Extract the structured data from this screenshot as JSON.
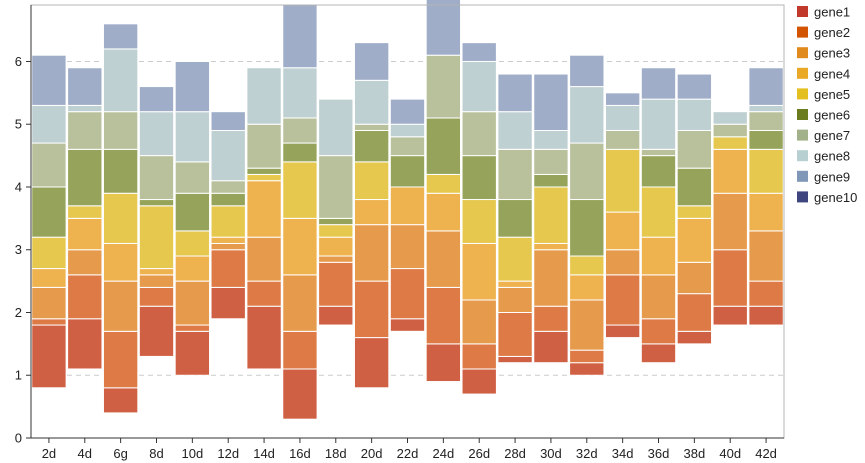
{
  "chart_data": {
    "type": "bar",
    "stacked": true,
    "floating_base": true,
    "title": "",
    "xlabel": "",
    "ylabel": "",
    "ylim": [
      0,
      6.9
    ],
    "yticks": [
      0,
      1,
      2,
      3,
      4,
      5,
      6
    ],
    "grid": "horizontal dashed at 1-6",
    "legend": "right",
    "categories": [
      "2d",
      "4d",
      "6g",
      "8d",
      "10d",
      "12d",
      "14d",
      "16d",
      "18d",
      "20d",
      "22d",
      "24d",
      "26d",
      "28d",
      "30d",
      "32d",
      "34d",
      "36d",
      "38d",
      "40d",
      "42d"
    ],
    "base": [
      0.8,
      1.1,
      0.4,
      1.3,
      1.0,
      1.9,
      1.1,
      0.3,
      1.8,
      0.8,
      1.7,
      0.9,
      0.7,
      1.2,
      1.2,
      1.0,
      1.6,
      1.2,
      1.5,
      1.8,
      1.8
    ],
    "series": [
      {
        "name": "gene1",
        "color": "#d06043",
        "values": [
          1.0,
          0.8,
          0.4,
          0.8,
          0.7,
          0.5,
          1.0,
          0.8,
          0.3,
          0.8,
          0.2,
          0.6,
          0.4,
          0.1,
          0.5,
          0.2,
          0.2,
          0.3,
          0.2,
          0.3,
          0.3
        ]
      },
      {
        "name": "gene2",
        "color": "#dd7a45",
        "values": [
          0.1,
          0.7,
          0.9,
          0.3,
          0.1,
          0.6,
          0.4,
          0.6,
          0.7,
          0.9,
          0.8,
          0.9,
          0.4,
          0.7,
          0.4,
          0.2,
          0.8,
          0.4,
          0.6,
          0.9,
          0.4
        ]
      },
      {
        "name": "gene3",
        "color": "#e69a4b",
        "values": [
          0.5,
          0.4,
          0.8,
          0.2,
          0.7,
          0.1,
          0.7,
          0.9,
          0.1,
          0.9,
          0.7,
          0.9,
          0.7,
          0.4,
          0.9,
          0.8,
          0.4,
          0.7,
          0.5,
          0.9,
          0.8
        ]
      },
      {
        "name": "gene4",
        "color": "#eeb24e",
        "values": [
          0.3,
          0.5,
          0.6,
          0.1,
          0.4,
          0.1,
          0.9,
          0.9,
          0.3,
          0.4,
          0.6,
          0.6,
          0.9,
          0.1,
          0.1,
          0.4,
          0.6,
          0.6,
          0.7,
          0.7,
          0.6
        ]
      },
      {
        "name": "gene5",
        "color": "#e6c84e",
        "values": [
          0.5,
          0.2,
          0.8,
          1.0,
          0.4,
          0.5,
          0.1,
          0.9,
          0.2,
          0.6,
          0.0,
          0.3,
          0.7,
          0.7,
          0.9,
          0.3,
          1.0,
          0.8,
          0.2,
          0.2,
          0.7
        ]
      },
      {
        "name": "gene6",
        "color": "#95a45a",
        "values": [
          0.8,
          0.9,
          0.7,
          0.1,
          0.6,
          0.2,
          0.1,
          0.3,
          0.1,
          0.5,
          0.5,
          0.9,
          0.7,
          0.6,
          0.2,
          0.9,
          0.0,
          0.5,
          0.6,
          0.0,
          0.3
        ]
      },
      {
        "name": "gene7",
        "color": "#b8c19c",
        "values": [
          0.7,
          0.6,
          0.6,
          0.7,
          0.5,
          0.2,
          0.7,
          0.4,
          1.0,
          0.1,
          0.3,
          1.0,
          0.7,
          0.8,
          0.4,
          0.9,
          0.3,
          0.1,
          0.6,
          0.2,
          0.3
        ]
      },
      {
        "name": "gene8",
        "color": "#bfd0d2",
        "values": [
          0.6,
          0.1,
          1.0,
          0.7,
          0.8,
          0.8,
          0.9,
          0.8,
          0.9,
          0.7,
          0.2,
          0.0,
          0.8,
          0.6,
          0.3,
          0.9,
          0.4,
          0.8,
          0.5,
          0.2,
          0.1
        ]
      },
      {
        "name": "gene9",
        "color": "#9fadc8",
        "values": [
          0.8,
          0.6,
          0.4,
          0.4,
          0.8,
          0.3,
          0.0,
          1.0,
          0.0,
          0.6,
          0.4,
          0.9,
          0.3,
          0.6,
          0.9,
          0.5,
          0.2,
          0.5,
          0.4,
          0.0,
          0.6
        ]
      },
      {
        "name": "gene10",
        "color": "#4a4f88",
        "values": [
          0,
          0,
          0,
          0,
          0,
          0,
          0,
          0,
          0,
          0,
          0,
          0,
          0,
          0,
          0,
          0,
          0,
          0,
          0,
          0,
          0
        ]
      }
    ],
    "legend_colors": [
      "#c0392b",
      "#d35400",
      "#e08a1e",
      "#e9a826",
      "#e3bf1f",
      "#6b7c1f",
      "#a3b18a",
      "#b7cfd0",
      "#8097b8",
      "#3f467f"
    ]
  }
}
